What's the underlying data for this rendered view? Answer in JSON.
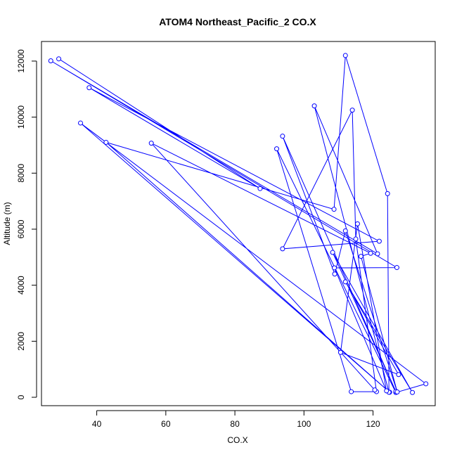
{
  "chart_data": {
    "type": "line",
    "title": "ATOM4 Northeast_Pacific_2 CO.X",
    "xlabel": "CO.X",
    "ylabel": "Altitude (m)",
    "xlim": [
      24,
      138
    ],
    "ylim": [
      -300,
      12700
    ],
    "x_ticks": [
      40,
      60,
      80,
      100,
      120
    ],
    "y_ticks": [
      0,
      2000,
      4000,
      6000,
      8000,
      10000,
      12000
    ],
    "markers": "open-circle",
    "grid": false,
    "series": [
      {
        "color": "#0000ff",
        "points": [
          {
            "x": 29.0,
            "y": 12080
          },
          {
            "x": 87.3,
            "y": 7450
          },
          {
            "x": 37.8,
            "y": 11050
          },
          {
            "x": 121.8,
            "y": 5570
          },
          {
            "x": 93.8,
            "y": 5300
          },
          {
            "x": 114.0,
            "y": 10250
          },
          {
            "x": 115.0,
            "y": 5650
          },
          {
            "x": 121.0,
            "y": 200
          },
          {
            "x": 113.7,
            "y": 200
          },
          {
            "x": 92.1,
            "y": 8870
          },
          {
            "x": 126.6,
            "y": 170
          },
          {
            "x": 135.3,
            "y": 480
          },
          {
            "x": 35.3,
            "y": 9790
          },
          {
            "x": 124.8,
            "y": 180
          },
          {
            "x": 42.7,
            "y": 9100
          },
          {
            "x": 108.7,
            "y": 6710
          },
          {
            "x": 112.0,
            "y": 12200
          },
          {
            "x": 124.2,
            "y": 7270
          },
          {
            "x": 124.6,
            "y": 180
          },
          {
            "x": 103.0,
            "y": 10400
          },
          {
            "x": 121.3,
            "y": 5120
          },
          {
            "x": 26.7,
            "y": 12010
          },
          {
            "x": 126.9,
            "y": 4630
          },
          {
            "x": 108.8,
            "y": 4620
          },
          {
            "x": 123.9,
            "y": 230
          },
          {
            "x": 115.5,
            "y": 6190
          },
          {
            "x": 110.6,
            "y": 1600
          },
          {
            "x": 127.4,
            "y": 810
          },
          {
            "x": 112.0,
            "y": 4120
          },
          {
            "x": 131.4,
            "y": 170
          },
          {
            "x": 108.3,
            "y": 5170
          },
          {
            "x": 126.6,
            "y": 210
          },
          {
            "x": 93.8,
            "y": 9320
          },
          {
            "x": 108.9,
            "y": 4400
          },
          {
            "x": 112.0,
            "y": 5940
          },
          {
            "x": 127.0,
            "y": 190
          },
          {
            "x": 116.5,
            "y": 5030
          },
          {
            "x": 119.3,
            "y": 5140
          },
          {
            "x": 55.8,
            "y": 9070
          },
          {
            "x": 120.5,
            "y": 260
          }
        ]
      }
    ]
  }
}
